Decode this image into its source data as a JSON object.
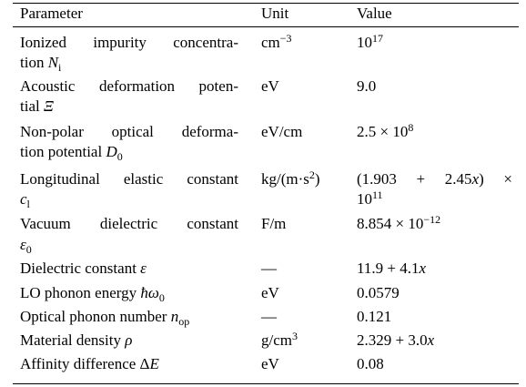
{
  "table": {
    "header": [
      "Parameter",
      "Unit",
      "Value"
    ],
    "rows": [
      {
        "param": [
          [
            "Ionized impurity concentra-"
          ],
          [
            "tion ",
            {
              "t": "N",
              "s": "i"
            },
            {
              "t": "i",
              "s": "sub"
            }
          ]
        ],
        "unit": [
          [
            "cm",
            {
              "t": "−3",
              "s": "sup"
            }
          ]
        ],
        "value": [
          [
            "10",
            {
              "t": "17",
              "s": "sup"
            }
          ]
        ]
      },
      {
        "param": [
          [
            "Acoustic deformation poten-"
          ],
          [
            "tial ",
            {
              "t": "Ξ",
              "s": "i"
            }
          ]
        ],
        "unit": [
          [
            "eV"
          ]
        ],
        "value": [
          [
            "9.0"
          ]
        ]
      },
      {
        "param": [
          [
            "Non-polar optical deforma-"
          ],
          [
            "tion potential ",
            {
              "t": "D",
              "s": "i"
            },
            {
              "t": "0",
              "s": "sub"
            }
          ]
        ],
        "unit": [
          [
            "eV/cm"
          ]
        ],
        "value": [
          [
            "2.5 × 10",
            {
              "t": "8",
              "s": "sup"
            }
          ]
        ]
      },
      {
        "param": [
          [
            "Longitudinal elastic constant"
          ],
          [
            {
              "t": "c",
              "s": "i"
            },
            {
              "t": "l",
              "s": "sub"
            }
          ]
        ],
        "unit": [
          [
            "kg/(m·s",
            {
              "t": "2",
              "s": "sup"
            },
            ")"
          ]
        ],
        "value": [
          [
            "(1.903 + 2.45",
            {
              "t": "x",
              "s": "i"
            },
            ") ×"
          ],
          [
            "10",
            {
              "t": "11",
              "s": "sup"
            }
          ]
        ]
      },
      {
        "param": [
          [
            "Vacuum dielectric constant"
          ],
          [
            {
              "t": "ε",
              "s": "i"
            },
            {
              "t": "0",
              "s": "sub"
            }
          ]
        ],
        "unit": [
          [
            "F/m"
          ]
        ],
        "value": [
          [
            "8.854 × 10",
            {
              "t": "−12",
              "s": "sup"
            }
          ]
        ]
      },
      {
        "param": [
          [
            "Dielectric constant ",
            {
              "t": "ε",
              "s": "i"
            }
          ]
        ],
        "unit": [
          [
            "—"
          ]
        ],
        "value": [
          [
            "11.9 + 4.1",
            {
              "t": "x",
              "s": "i"
            }
          ]
        ]
      },
      {
        "param": [
          [
            "LO phonon energy ",
            {
              "t": "ħω",
              "s": "i"
            },
            {
              "t": "0",
              "s": "sub"
            }
          ]
        ],
        "unit": [
          [
            "eV"
          ]
        ],
        "value": [
          [
            "0.0579"
          ]
        ]
      },
      {
        "param": [
          [
            "Optical phonon number ",
            {
              "t": "n",
              "s": "i"
            },
            {
              "t": "op",
              "s": "sub"
            }
          ]
        ],
        "unit": [
          [
            "—"
          ]
        ],
        "value": [
          [
            "0.121"
          ]
        ]
      },
      {
        "param": [
          [
            "Material density ",
            {
              "t": "ρ",
              "s": "i"
            }
          ]
        ],
        "unit": [
          [
            "g/cm",
            {
              "t": "3",
              "s": "sup"
            }
          ]
        ],
        "value": [
          [
            "2.329 + 3.0",
            {
              "t": "x",
              "s": "i"
            }
          ]
        ]
      },
      {
        "param": [
          [
            "Affinity difference Δ",
            {
              "t": "E",
              "s": "i"
            }
          ]
        ],
        "unit": [
          [
            "eV"
          ]
        ],
        "value": [
          [
            "0.08"
          ]
        ]
      }
    ]
  }
}
